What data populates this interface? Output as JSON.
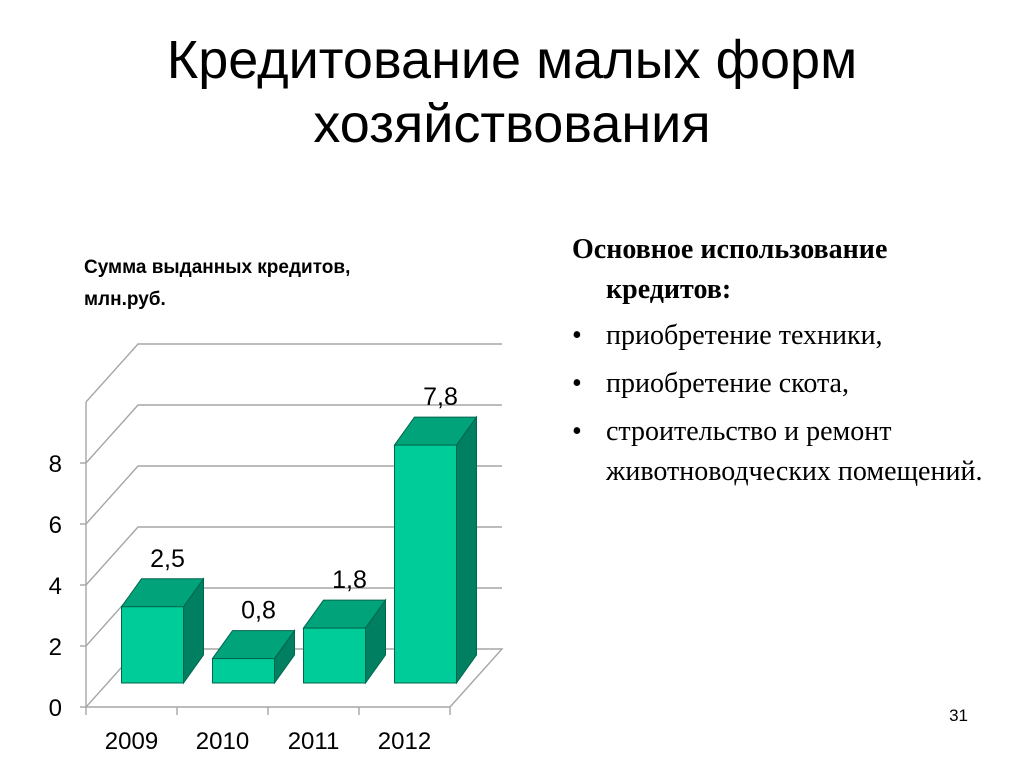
{
  "slide": {
    "title_lines": [
      "Кредитование малых форм",
      "хозяйствования"
    ],
    "page_number": "31"
  },
  "chart_data": {
    "type": "bar",
    "title_lines": [
      "Сумма выданных кредитов,",
      "млн.руб."
    ],
    "categories": [
      "2009",
      "2010",
      "2011",
      "2012"
    ],
    "values": [
      2.5,
      0.8,
      1.8,
      7.8
    ],
    "value_labels": [
      "2,5",
      "0,8",
      "1,8",
      "7,8"
    ],
    "yticks": [
      0,
      2,
      4,
      6,
      8
    ],
    "ylim": [
      0,
      10
    ],
    "grid": true,
    "three_d": true,
    "colors": {
      "bar_front": "#00CC99",
      "bar_top": "#00A37A",
      "bar_side": "#008060",
      "bar_stroke": "#00664D",
      "grid": "#a6a6a6",
      "floor": "#a6a6a6"
    }
  },
  "usage": {
    "heading": "Основное использование кредитов:",
    "bullet": "•",
    "items": [
      "приобретение техники,",
      "приобретение скота,",
      "строительство и ремонт животноводческих помещений."
    ]
  }
}
